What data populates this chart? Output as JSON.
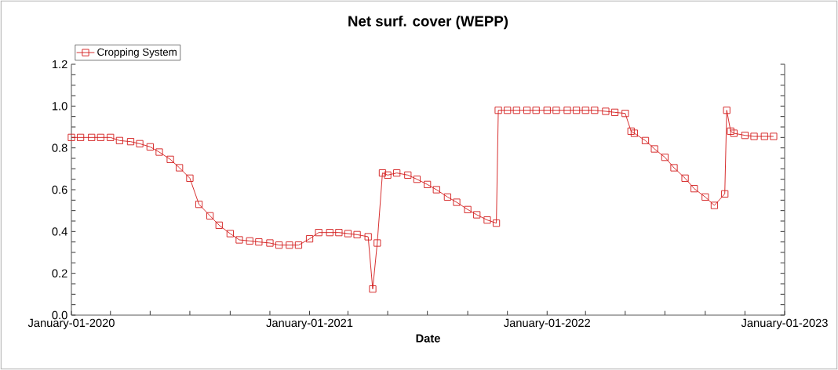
{
  "chart_data": {
    "type": "line",
    "title": "Net surf. cover (WEPP)",
    "xlabel": "Date",
    "x": [
      "2020-01-01",
      "2020-01-15",
      "2020-02-01",
      "2020-02-15",
      "2020-03-01",
      "2020-03-15",
      "2020-04-01",
      "2020-04-15",
      "2020-05-01",
      "2020-05-15",
      "2020-06-01",
      "2020-06-15",
      "2020-07-01",
      "2020-07-15",
      "2020-08-01",
      "2020-08-15",
      "2020-09-01",
      "2020-09-15",
      "2020-10-01",
      "2020-10-15",
      "2020-11-01",
      "2020-11-15",
      "2020-12-01",
      "2020-12-15",
      "2021-01-01",
      "2021-01-15",
      "2021-02-01",
      "2021-02-15",
      "2021-03-01",
      "2021-03-15",
      "2021-04-01",
      "2021-04-08",
      "2021-04-15",
      "2021-04-23",
      "2021-05-01",
      "2021-05-15",
      "2021-06-01",
      "2021-06-15",
      "2021-07-01",
      "2021-07-15",
      "2021-08-01",
      "2021-08-15",
      "2021-09-01",
      "2021-09-15",
      "2021-10-01",
      "2021-10-15",
      "2021-10-18",
      "2021-11-01",
      "2021-11-15",
      "2021-12-01",
      "2021-12-15",
      "2022-01-01",
      "2022-01-15",
      "2022-02-01",
      "2022-02-15",
      "2022-03-01",
      "2022-03-15",
      "2022-04-01",
      "2022-04-15",
      "2022-05-01",
      "2022-05-10",
      "2022-05-15",
      "2022-06-01",
      "2022-06-15",
      "2022-07-01",
      "2022-07-15",
      "2022-08-01",
      "2022-08-15",
      "2022-09-01",
      "2022-09-15",
      "2022-10-01",
      "2022-10-04",
      "2022-10-10",
      "2022-10-15",
      "2022-11-01",
      "2022-11-15",
      "2022-12-01",
      "2022-12-15"
    ],
    "series": [
      {
        "name": "Cropping System",
        "color": "#d42020",
        "values": [
          0.85,
          0.85,
          0.85,
          0.85,
          0.85,
          0.835,
          0.83,
          0.82,
          0.805,
          0.78,
          0.745,
          0.705,
          0.655,
          0.53,
          0.475,
          0.43,
          0.39,
          0.36,
          0.355,
          0.35,
          0.345,
          0.335,
          0.335,
          0.335,
          0.365,
          0.395,
          0.395,
          0.395,
          0.39,
          0.385,
          0.375,
          0.125,
          0.345,
          0.68,
          0.67,
          0.68,
          0.67,
          0.65,
          0.625,
          0.6,
          0.565,
          0.54,
          0.505,
          0.48,
          0.455,
          0.44,
          0.98,
          0.98,
          0.98,
          0.98,
          0.98,
          0.98,
          0.98,
          0.98,
          0.98,
          0.98,
          0.98,
          0.975,
          0.97,
          0.965,
          0.88,
          0.87,
          0.835,
          0.795,
          0.755,
          0.705,
          0.655,
          0.605,
          0.565,
          0.525,
          0.58,
          0.98,
          0.88,
          0.87,
          0.86,
          0.855,
          0.855,
          0.855
        ]
      }
    ],
    "xlim": [
      "2020-01-01",
      "2023-01-01"
    ],
    "xticks": [
      {
        "value": "2020-01-01",
        "label": "January-01-2020"
      },
      {
        "value": "2020-03-01",
        "label": null
      },
      {
        "value": "2020-05-01",
        "label": null
      },
      {
        "value": "2020-07-01",
        "label": null
      },
      {
        "value": "2020-09-01",
        "label": null
      },
      {
        "value": "2020-11-01",
        "label": null
      },
      {
        "value": "2021-01-01",
        "label": "January-01-2021"
      },
      {
        "value": "2021-03-01",
        "label": null
      },
      {
        "value": "2021-05-01",
        "label": null
      },
      {
        "value": "2021-07-01",
        "label": null
      },
      {
        "value": "2021-09-01",
        "label": null
      },
      {
        "value": "2021-11-01",
        "label": null
      },
      {
        "value": "2022-01-01",
        "label": "January-01-2022"
      },
      {
        "value": "2022-03-01",
        "label": null
      },
      {
        "value": "2022-05-01",
        "label": null
      },
      {
        "value": "2022-07-01",
        "label": null
      },
      {
        "value": "2022-09-01",
        "label": null
      },
      {
        "value": "2022-11-01",
        "label": null
      },
      {
        "value": "2023-01-01",
        "label": "January-01-2023"
      }
    ],
    "ylim": [
      0,
      1.2
    ],
    "yticks": [
      {
        "value": 0,
        "label": "0.0"
      },
      {
        "value": 0.05,
        "label": null
      },
      {
        "value": 0.1,
        "label": null
      },
      {
        "value": 0.15,
        "label": null
      },
      {
        "value": 0.2,
        "label": "0.2"
      },
      {
        "value": 0.25,
        "label": null
      },
      {
        "value": 0.3,
        "label": null
      },
      {
        "value": 0.35,
        "label": null
      },
      {
        "value": 0.4,
        "label": "0.4"
      },
      {
        "value": 0.45,
        "label": null
      },
      {
        "value": 0.5,
        "label": null
      },
      {
        "value": 0.55,
        "label": null
      },
      {
        "value": 0.6,
        "label": "0.6"
      },
      {
        "value": 0.65,
        "label": null
      },
      {
        "value": 0.7,
        "label": null
      },
      {
        "value": 0.75,
        "label": null
      },
      {
        "value": 0.8,
        "label": "0.8"
      },
      {
        "value": 0.85,
        "label": null
      },
      {
        "value": 0.9,
        "label": null
      },
      {
        "value": 0.95,
        "label": null
      },
      {
        "value": 1.0,
        "label": "1.0"
      },
      {
        "value": 1.05,
        "label": null
      },
      {
        "value": 1.1,
        "label": null
      },
      {
        "value": 1.15,
        "label": null
      },
      {
        "value": 1.2,
        "label": "1.2"
      }
    ],
    "legend": "top left",
    "marker": "square",
    "line_style": "solid",
    "grid": false
  }
}
